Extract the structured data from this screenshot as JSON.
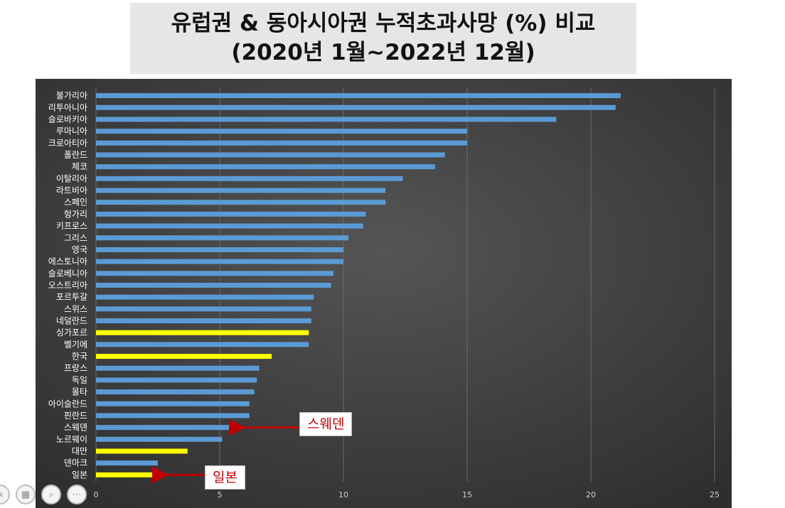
{
  "title": {
    "line1": "유럽권 & 동아시아권 누적초과사망 (%) 비교",
    "line2": "(2020년 1월~2022년 12월)"
  },
  "chart_data": {
    "type": "bar",
    "orientation": "horizontal",
    "categories": [
      "불가리아",
      "리투아니아",
      "슬로바키아",
      "루마니아",
      "크로아티아",
      "폴란드",
      "체코",
      "이탈리아",
      "라트비아",
      "스페인",
      "헝가리",
      "키프로스",
      "그리스",
      "영국",
      "에스토니아",
      "슬로베니아",
      "오스트리아",
      "포르투갈",
      "스위스",
      "네덜란드",
      "싱가포르",
      "벨기에",
      "한국",
      "프랑스",
      "독일",
      "몰타",
      "아이슬란드",
      "핀란드",
      "스웨덴",
      "노르웨이",
      "대만",
      "덴마크",
      "일본"
    ],
    "values": [
      21.2,
      21.0,
      18.6,
      15.0,
      15.0,
      14.1,
      13.7,
      12.4,
      11.7,
      11.7,
      10.9,
      10.8,
      10.2,
      10.0,
      10.0,
      9.6,
      9.5,
      8.8,
      8.7,
      8.7,
      8.6,
      8.6,
      7.1,
      6.6,
      6.5,
      6.4,
      6.2,
      6.2,
      5.6,
      5.1,
      3.7,
      2.5,
      2.5
    ],
    "highlighted": [
      "싱가포르",
      "한국",
      "대만",
      "일본"
    ],
    "xlim": [
      0,
      25
    ],
    "xticks": [
      0,
      5,
      10,
      15,
      20,
      25
    ],
    "grid": true,
    "colors": {
      "default": "#5b9bd5",
      "highlight": "#ffff00",
      "background": "#404040",
      "arrow": "#c00000"
    },
    "annotations": [
      {
        "text": "스웨덴",
        "target": "스웨덴"
      },
      {
        "text": "일본",
        "target": "일본"
      }
    ]
  },
  "toolbar": {
    "icons": [
      "pen-icon",
      "slides-icon",
      "zoom-icon",
      "more-icon"
    ]
  }
}
